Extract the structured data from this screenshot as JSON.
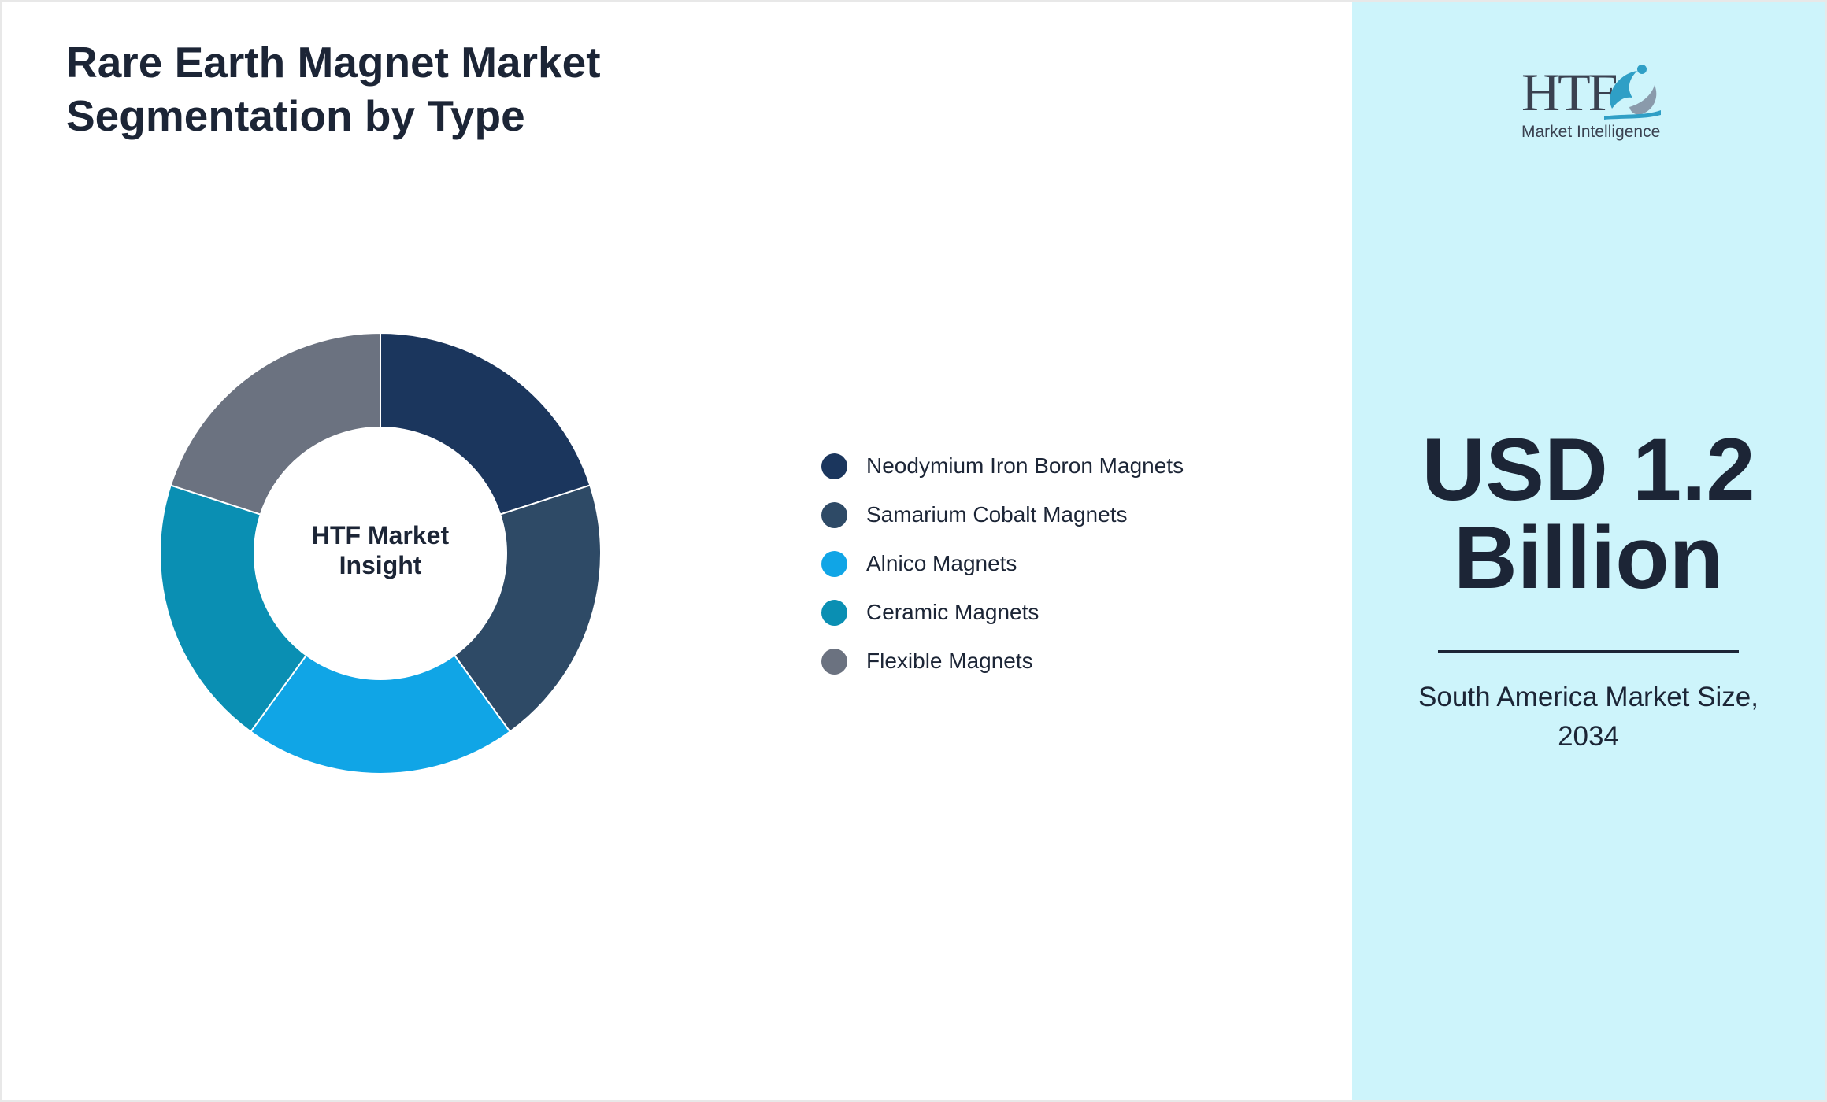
{
  "title": {
    "line1": "Rare Earth Magnet Market",
    "line2": "Segmentation by Type"
  },
  "chart_data": {
    "type": "pie",
    "variant": "donut",
    "center_label": [
      "HTF Market",
      "Insight"
    ],
    "categories": [
      "Neodymium Iron Boron Magnets",
      "Samarium Cobalt Magnets",
      "Alnico Magnets",
      "Ceramic Magnets",
      "Flexible Magnets"
    ],
    "values": [
      20,
      20,
      20,
      20,
      20
    ],
    "colors": [
      "#1b365d",
      "#2e4a66",
      "#10a5e6",
      "#0a8fb3",
      "#6b7280"
    ],
    "legend_position": "right"
  },
  "side_panel": {
    "value_line1": "USD 1.2",
    "value_line2": "Billion",
    "caption_line1": "South America Market Size,",
    "caption_line2": "2034",
    "background": "#cdf4fb"
  },
  "logo": {
    "wordmark": "HTF",
    "tagline": "Market Intelligence"
  }
}
